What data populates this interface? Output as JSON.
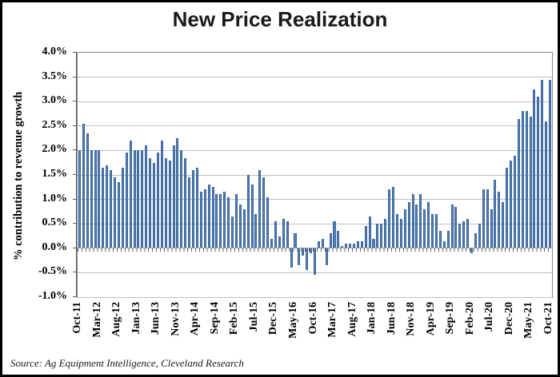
{
  "title": "New Price Realization",
  "source": "Source: Ag Equipment Intelligence, Cleveland Research",
  "y_axis": {
    "title": "% contribution to revenue growth",
    "tick_labels": [
      "4.0%",
      "3.5%",
      "3.0%",
      "2.5%",
      "2.0%",
      "1.5%",
      "1.0%",
      "0.5%",
      "0.0%",
      "-0.5%",
      "-1.0%"
    ],
    "max": 4.0,
    "min": -1.0,
    "step": 0.5
  },
  "x_axis": {
    "tick_labels": [
      "Oct-11",
      "Mar-12",
      "Aug-12",
      "Jan-13",
      "Jun-13",
      "Nov-13",
      "Apr-14",
      "Sep-14",
      "Feb-15",
      "Jul-15",
      "Dec-15",
      "May-16",
      "Oct-16",
      "Mar-17",
      "Aug-17",
      "Jan-18",
      "Jun-18",
      "Nov-18",
      "Apr-19",
      "Sep-19",
      "Feb-20",
      "Jul-20",
      "Dec-20",
      "May-21",
      "Oct-21"
    ],
    "label_every_n_bars": 5
  },
  "colors": {
    "bar_fill": "#4F81BD",
    "bar_border": "#3c6497",
    "gridline": "#bfbfbf",
    "axis_line": "#595959",
    "frame": "#000000"
  },
  "chart_data": {
    "type": "bar",
    "title": "New Price Realization",
    "xlabel": "",
    "ylabel": "% contribution to revenue growth",
    "ylim": [
      -1.0,
      4.0
    ],
    "y_tick_step": 0.5,
    "grid": true,
    "legend_position": "none",
    "x": [
      "Oct-11",
      "Nov-11",
      "Dec-11",
      "Jan-12",
      "Feb-12",
      "Mar-12",
      "Apr-12",
      "May-12",
      "Jun-12",
      "Jul-12",
      "Aug-12",
      "Sep-12",
      "Oct-12",
      "Nov-12",
      "Dec-12",
      "Jan-13",
      "Feb-13",
      "Mar-13",
      "Apr-13",
      "May-13",
      "Jun-13",
      "Jul-13",
      "Aug-13",
      "Sep-13",
      "Oct-13",
      "Nov-13",
      "Dec-13",
      "Jan-14",
      "Feb-14",
      "Mar-14",
      "Apr-14",
      "May-14",
      "Jun-14",
      "Jul-14",
      "Aug-14",
      "Sep-14",
      "Oct-14",
      "Nov-14",
      "Dec-14",
      "Jan-15",
      "Feb-15",
      "Mar-15",
      "Apr-15",
      "May-15",
      "Jun-15",
      "Jul-15",
      "Aug-15",
      "Sep-15",
      "Oct-15",
      "Nov-15",
      "Dec-15",
      "Jan-16",
      "Feb-16",
      "Mar-16",
      "Apr-16",
      "May-16",
      "Jun-16",
      "Jul-16",
      "Aug-16",
      "Sep-16",
      "Oct-16",
      "Nov-16",
      "Dec-16",
      "Jan-17",
      "Feb-17",
      "Mar-17",
      "Apr-17",
      "May-17",
      "Jun-17",
      "Jul-17",
      "Aug-17",
      "Sep-17",
      "Oct-17",
      "Nov-17",
      "Dec-17",
      "Jan-18",
      "Feb-18",
      "Mar-18",
      "Apr-18",
      "May-18",
      "Jun-18",
      "Jul-18",
      "Aug-18",
      "Sep-18",
      "Oct-18",
      "Nov-18",
      "Dec-18",
      "Jan-19",
      "Feb-19",
      "Mar-19",
      "Apr-19",
      "May-19",
      "Jun-19",
      "Jul-19",
      "Aug-19",
      "Sep-19",
      "Oct-19",
      "Nov-19",
      "Dec-19",
      "Jan-20",
      "Feb-20",
      "Mar-20",
      "Apr-20",
      "May-20",
      "Jun-20",
      "Jul-20",
      "Aug-20",
      "Sep-20",
      "Oct-20",
      "Nov-20",
      "Dec-20",
      "Jan-21",
      "Feb-21",
      "Mar-21",
      "Apr-21",
      "May-21",
      "Jun-21",
      "Jul-21",
      "Aug-21",
      "Sep-21",
      "Oct-21"
    ],
    "values": [
      2.0,
      2.55,
      2.35,
      2.0,
      2.0,
      2.0,
      1.65,
      1.7,
      1.6,
      1.45,
      1.35,
      1.65,
      1.95,
      2.2,
      2.0,
      2.0,
      2.0,
      2.1,
      1.85,
      1.75,
      1.95,
      2.2,
      1.85,
      1.8,
      2.1,
      2.25,
      2.0,
      1.85,
      1.45,
      1.6,
      1.65,
      1.15,
      1.2,
      1.3,
      1.25,
      1.1,
      1.1,
      1.15,
      1.05,
      0.65,
      1.1,
      0.9,
      0.8,
      1.5,
      1.3,
      0.7,
      1.6,
      1.45,
      1.05,
      0.2,
      0.55,
      0.25,
      0.6,
      0.55,
      -0.4,
      0.3,
      -0.35,
      -0.15,
      -0.45,
      -0.1,
      -0.55,
      0.15,
      0.2,
      -0.35,
      0.3,
      0.55,
      0.35,
      0.05,
      0.1,
      0.1,
      0.1,
      0.15,
      0.15,
      0.45,
      0.65,
      0.2,
      0.5,
      0.5,
      0.6,
      1.2,
      1.25,
      0.7,
      0.6,
      0.8,
      0.95,
      1.1,
      0.9,
      1.1,
      0.8,
      0.95,
      0.7,
      0.7,
      0.35,
      0.15,
      0.35,
      0.9,
      0.85,
      0.5,
      0.55,
      0.6,
      -0.1,
      0.3,
      0.5,
      1.2,
      1.2,
      0.8,
      1.4,
      1.15,
      0.95,
      1.65,
      1.8,
      1.9,
      2.65,
      2.8,
      2.8,
      2.7,
      3.25,
      3.1,
      3.45,
      2.6,
      3.45
    ]
  }
}
